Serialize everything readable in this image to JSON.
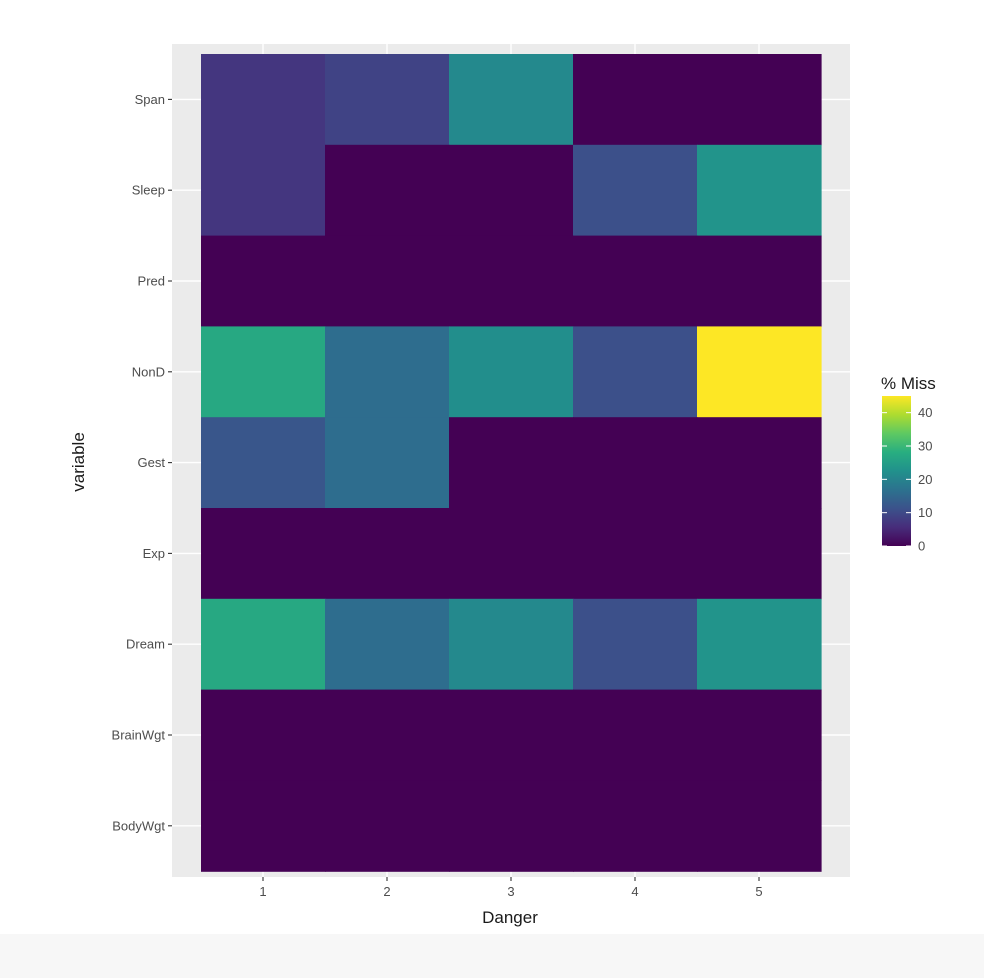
{
  "chart_data": {
    "type": "heatmap",
    "xlabel": "Danger",
    "ylabel": "variable",
    "x_categories": [
      "1",
      "2",
      "3",
      "4",
      "5"
    ],
    "y_categories": [
      "Span",
      "Sleep",
      "Pred",
      "NonD",
      "Gest",
      "Exp",
      "Dream",
      "BrainWgt",
      "BodyWgt"
    ],
    "values": [
      [
        7,
        9,
        21,
        0,
        0
      ],
      [
        7,
        0,
        0,
        11,
        23
      ],
      [
        0,
        0,
        0,
        0,
        0
      ],
      [
        27,
        16,
        22,
        11,
        45
      ],
      [
        12,
        16,
        0,
        0,
        0
      ],
      [
        0,
        0,
        0,
        0,
        0
      ],
      [
        27,
        16,
        21,
        11,
        23
      ],
      [
        0,
        0,
        0,
        0,
        0
      ],
      [
        0,
        0,
        0,
        0,
        0
      ]
    ],
    "legend": {
      "title": "% Miss",
      "ticks": [
        "0",
        "10",
        "20",
        "30",
        "40"
      ],
      "range": [
        0,
        45
      ],
      "placement": "right"
    },
    "colorscale": "viridis",
    "panel_background": "#ebebeb",
    "grid": true
  }
}
